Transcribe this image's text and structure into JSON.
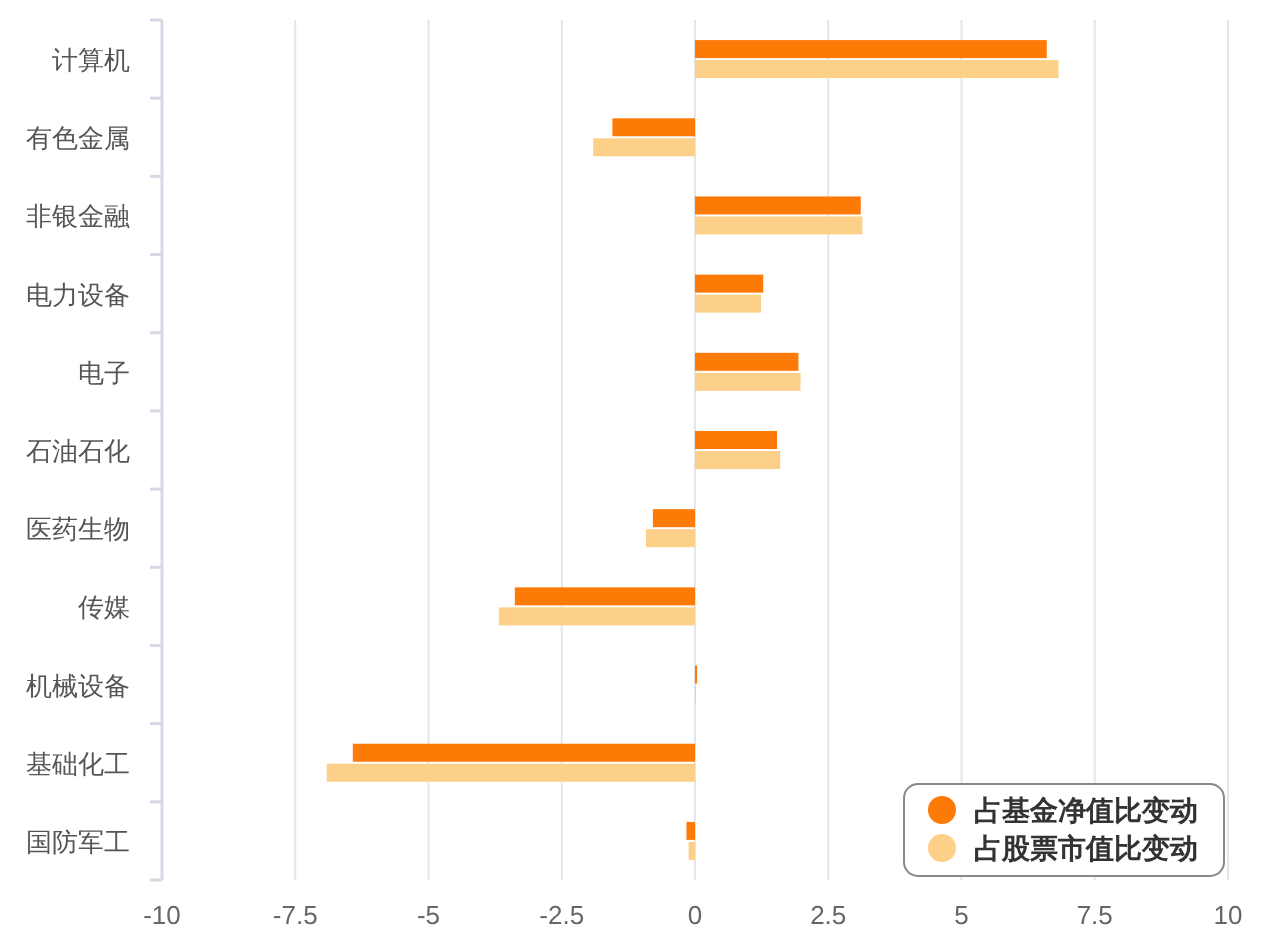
{
  "chart_data": {
    "type": "bar",
    "orientation": "horizontal",
    "categories": [
      "计算机",
      "有色金属",
      "非银金融",
      "电力设备",
      "电子",
      "石油石化",
      "医药生物",
      "传媒",
      "机械设备",
      "基础化工",
      "国防军工"
    ],
    "series": [
      {
        "name": "占基金净值比变动",
        "color": "#fe7a07",
        "values": [
          6.6,
          -1.55,
          3.11,
          1.28,
          1.94,
          1.54,
          -0.79,
          -3.38,
          0.04,
          -6.42,
          -0.16
        ]
      },
      {
        "name": "占股票市值比变动",
        "color": "#fdd08a",
        "values": [
          6.82,
          -1.91,
          3.14,
          1.24,
          1.98,
          1.6,
          -0.92,
          -3.68,
          0.02,
          -6.91,
          -0.12
        ]
      }
    ],
    "xlim": [
      -10,
      10
    ],
    "xticks": [
      -10,
      -7.5,
      -5,
      -2.5,
      0,
      2.5,
      5,
      7.5,
      10
    ],
    "grid": "x",
    "legend": "bottom right"
  }
}
